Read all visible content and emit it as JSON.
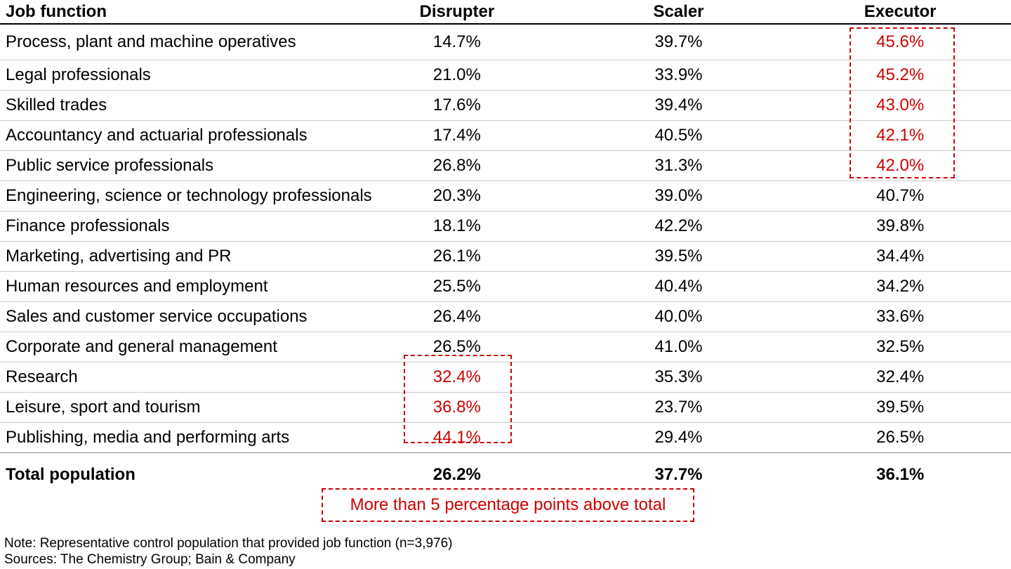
{
  "colors": {
    "highlight_red": "#cc0000",
    "row_divider": "#c9c9c9",
    "total_divider": "#8f8f8f",
    "header_line": "#000000"
  },
  "table": {
    "columns": {
      "job_function": "Job function",
      "disrupter": "Disrupter",
      "scaler": "Scaler",
      "executor": "Executor"
    },
    "rows": [
      {
        "label": "Process, plant and machine operatives",
        "disrupter": "14.7%",
        "scaler": "39.7%",
        "executor": "45.6%"
      },
      {
        "label": "Legal professionals",
        "disrupter": "21.0%",
        "scaler": "33.9%",
        "executor": "45.2%"
      },
      {
        "label": "Skilled trades",
        "disrupter": "17.6%",
        "scaler": "39.4%",
        "executor": "43.0%"
      },
      {
        "label": "Accountancy and actuarial professionals",
        "disrupter": "17.4%",
        "scaler": "40.5%",
        "executor": "42.1%"
      },
      {
        "label": "Public service professionals",
        "disrupter": "26.8%",
        "scaler": "31.3%",
        "executor": "42.0%"
      },
      {
        "label": "Engineering, science or technology professionals",
        "disrupter": "20.3%",
        "scaler": "39.0%",
        "executor": "40.7%"
      },
      {
        "label": "Finance professionals",
        "disrupter": "18.1%",
        "scaler": "42.2%",
        "executor": "39.8%"
      },
      {
        "label": "Marketing, advertising and PR",
        "disrupter": "26.1%",
        "scaler": "39.5%",
        "executor": "34.4%"
      },
      {
        "label": "Human resources and employment",
        "disrupter": "25.5%",
        "scaler": "40.4%",
        "executor": "34.2%"
      },
      {
        "label": "Sales and customer service occupations",
        "disrupter": "26.4%",
        "scaler": "40.0%",
        "executor": "33.6%"
      },
      {
        "label": "Corporate and general management",
        "disrupter": "26.5%",
        "scaler": "41.0%",
        "executor": "32.5%"
      },
      {
        "label": "Research",
        "disrupter": "32.4%",
        "scaler": "35.3%",
        "executor": "32.4%"
      },
      {
        "label": "Leisure, sport and tourism",
        "disrupter": "36.8%",
        "scaler": "23.7%",
        "executor": "39.5%"
      },
      {
        "label": "Publishing, media and performing arts",
        "disrupter": "44.1%",
        "scaler": "29.4%",
        "executor": "26.5%"
      }
    ],
    "total": {
      "label": "Total population",
      "disrupter": "26.2%",
      "scaler": "37.7%",
      "executor": "36.1%"
    },
    "highlights": {
      "executor": [
        0,
        1,
        2,
        3,
        4
      ],
      "disrupter": [
        11,
        12,
        13
      ]
    }
  },
  "legend": {
    "label": "More than 5 percentage points above total"
  },
  "notes": {
    "note": "Note: Representative control population that provided job function (n=3,976)",
    "sources": "Sources: The Chemistry Group; Bain & Company"
  },
  "chart_data": {
    "type": "table",
    "columns": [
      "Job function",
      "Disrupter",
      "Scaler",
      "Executor"
    ],
    "categories": [
      "Process, plant and machine operatives",
      "Legal professionals",
      "Skilled trades",
      "Accountancy and actuarial professionals",
      "Public service professionals",
      "Engineering, science or technology professionals",
      "Finance professionals",
      "Marketing, advertising and PR",
      "Human resources and employment",
      "Sales and customer service occupations",
      "Corporate and general management",
      "Research",
      "Leisure, sport and tourism",
      "Publishing, media and performing arts"
    ],
    "series": [
      {
        "name": "Disrupter",
        "values": [
          14.7,
          21.0,
          17.6,
          17.4,
          26.8,
          20.3,
          18.1,
          26.1,
          25.5,
          26.4,
          26.5,
          32.4,
          36.8,
          44.1
        ]
      },
      {
        "name": "Scaler",
        "values": [
          39.7,
          33.9,
          39.4,
          40.5,
          31.3,
          39.0,
          42.2,
          39.5,
          40.4,
          40.0,
          41.0,
          35.3,
          23.7,
          29.4
        ]
      },
      {
        "name": "Executor",
        "values": [
          45.6,
          45.2,
          43.0,
          42.1,
          42.0,
          40.7,
          39.8,
          34.4,
          34.2,
          33.6,
          32.5,
          32.4,
          39.5,
          26.5
        ]
      }
    ],
    "total": {
      "label": "Total population",
      "Disrupter": 26.2,
      "Scaler": 37.7,
      "Executor": 36.1
    },
    "unit": "%",
    "highlight_rule": "More than 5 percentage points above total",
    "highlighted_cells": {
      "Executor": [
        0,
        1,
        2,
        3,
        4
      ],
      "Disrupter": [
        11,
        12,
        13
      ]
    }
  }
}
